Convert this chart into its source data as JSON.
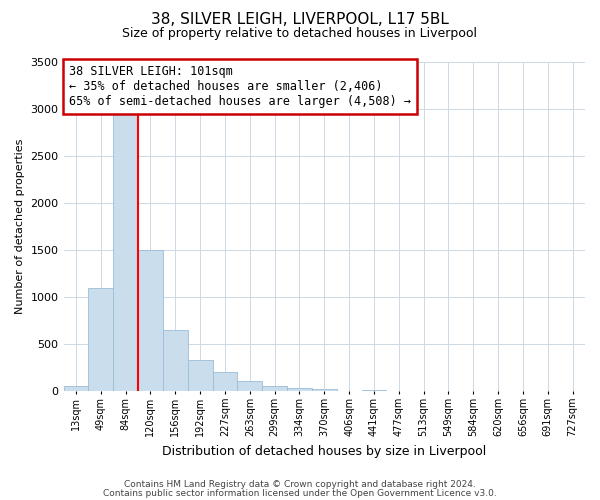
{
  "title": "38, SILVER LEIGH, LIVERPOOL, L17 5BL",
  "subtitle": "Size of property relative to detached houses in Liverpool",
  "xlabel": "Distribution of detached houses by size in Liverpool",
  "ylabel": "Number of detached properties",
  "bin_labels": [
    "13sqm",
    "49sqm",
    "84sqm",
    "120sqm",
    "156sqm",
    "192sqm",
    "227sqm",
    "263sqm",
    "299sqm",
    "334sqm",
    "370sqm",
    "406sqm",
    "441sqm",
    "477sqm",
    "513sqm",
    "549sqm",
    "584sqm",
    "620sqm",
    "656sqm",
    "691sqm",
    "727sqm"
  ],
  "bar_heights": [
    50,
    1100,
    2940,
    1500,
    650,
    330,
    200,
    105,
    55,
    30,
    25,
    0,
    15,
    0,
    0,
    0,
    0,
    0,
    0,
    0,
    0
  ],
  "bar_color": "#c9dded",
  "bar_edgecolor": "#9bbdd6",
  "red_line_bar_index": 2,
  "annotation_title": "38 SILVER LEIGH: 101sqm",
  "annotation_line1": "← 35% of detached houses are smaller (2,406)",
  "annotation_line2": "65% of semi-detached houses are larger (4,508) →",
  "annotation_box_color": "#ffffff",
  "annotation_box_edgecolor": "#cc0000",
  "ylim": [
    0,
    3500
  ],
  "yticks": [
    0,
    500,
    1000,
    1500,
    2000,
    2500,
    3000,
    3500
  ],
  "footer1": "Contains HM Land Registry data © Crown copyright and database right 2024.",
  "footer2": "Contains public sector information licensed under the Open Government Licence v3.0.",
  "background_color": "#ffffff",
  "grid_color": "#ccd8e5"
}
